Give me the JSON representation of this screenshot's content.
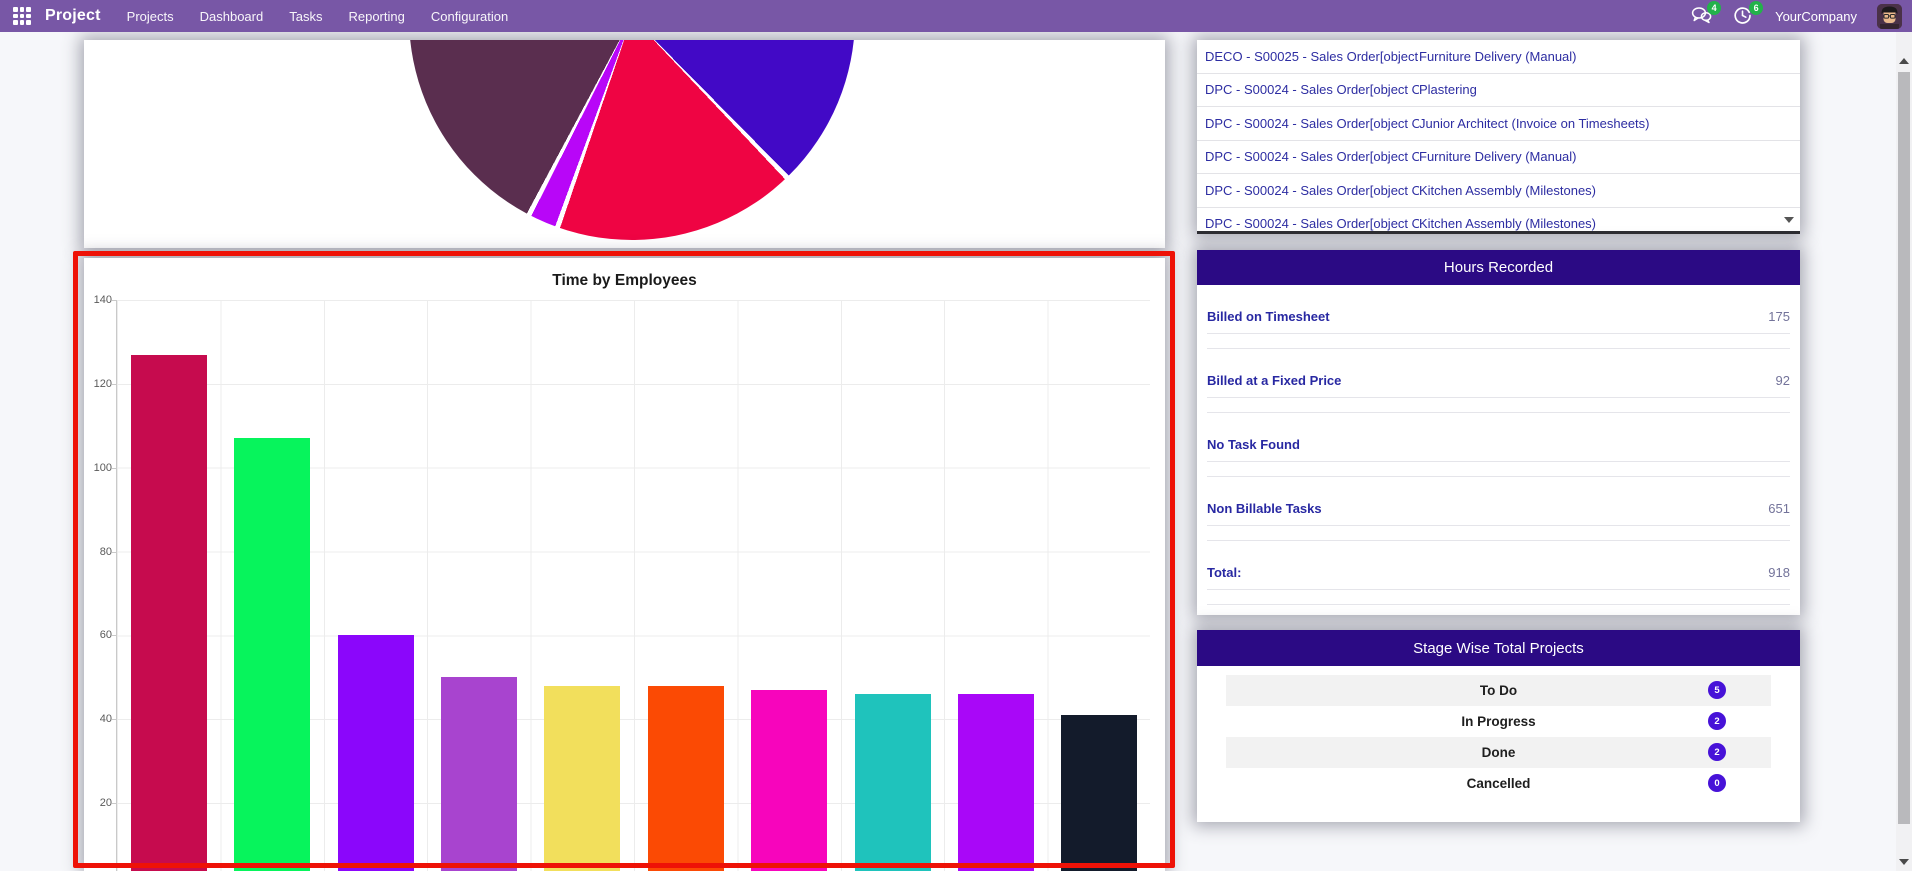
{
  "nav": {
    "app_name": "Project",
    "items": [
      "Projects",
      "Dashboard",
      "Tasks",
      "Reporting",
      "Configuration"
    ],
    "messages_badge": "4",
    "activities_badge": "6",
    "company": "YourCompany"
  },
  "sales_order_table": {
    "rows": [
      {
        "order": "DECO - S00025 - Sales Order[object Object]",
        "task": "Furniture Delivery (Manual)"
      },
      {
        "order": "DPC - S00024 - Sales Order[object Object]",
        "task": "Plastering"
      },
      {
        "order": "DPC - S00024 - Sales Order[object Object]",
        "task": "Junior Architect (Invoice on Timesheets)"
      },
      {
        "order": "DPC - S00024 - Sales Order[object Object]",
        "task": "Furniture Delivery (Manual)"
      },
      {
        "order": "DPC - S00024 - Sales Order[object Object]",
        "task": "Kitchen Assembly (Milestones)"
      },
      {
        "order": "DPC - S00024 - Sales Order[object Object]",
        "task": "Kitchen Assembly (Milestones)"
      }
    ]
  },
  "hours_recorded": {
    "title": "Hours Recorded",
    "rows": [
      {
        "label": "Billed on Timesheet",
        "value": "175"
      },
      {
        "label": "Billed at a Fixed Price",
        "value": "92"
      },
      {
        "label": "No Task Found",
        "value": ""
      },
      {
        "label": "Non Billable Tasks",
        "value": "651"
      },
      {
        "label": "Total:",
        "value": "918"
      }
    ]
  },
  "stage_wise": {
    "title": "Stage Wise Total Projects",
    "rows": [
      {
        "label": "To Do",
        "count": "5"
      },
      {
        "label": "In Progress",
        "count": "2"
      },
      {
        "label": "Done",
        "count": "2"
      },
      {
        "label": "Cancelled",
        "count": "0"
      }
    ]
  },
  "chart_data": [
    {
      "type": "pie",
      "title": "",
      "note": "only bottom segment of pie visible; labels and legend cut off above viewport",
      "slices": [
        {
          "label": "",
          "color": "#4209C6",
          "from_deg": 94,
          "to_deg": 136
        },
        {
          "label": "",
          "color": "#EF0443",
          "from_deg": 136,
          "to_deg": 199.5
        },
        {
          "label": "",
          "color": "#B806F8",
          "from_deg": 199.5,
          "to_deg": 207.5
        },
        {
          "label": "",
          "color": "#5A2E4F",
          "from_deg": 207.5,
          "to_deg": 266
        }
      ]
    },
    {
      "type": "bar",
      "title": "Time by Employees",
      "xlabel": "",
      "ylabel": "",
      "categories": [
        "",
        "",
        "",
        "",
        "",
        "",
        "",
        "",
        "",
        ""
      ],
      "values": [
        127,
        107,
        60,
        50,
        48,
        48,
        47,
        46,
        46,
        41
      ],
      "colors": [
        "#C60B4E",
        "#07F45C",
        "#8B06FB",
        "#A844CF",
        "#F2DF5C",
        "#FB4A04",
        "#F705BC",
        "#1FC3BC",
        "#A907F8",
        "#131B2B"
      ],
      "yticks": [
        140,
        120,
        100,
        80,
        60,
        40,
        20
      ],
      "ylim": [
        0,
        140
      ],
      "grid": true,
      "note": "x-axis category labels cut off below viewport"
    }
  ],
  "colors": {
    "nav_bg": "#7857A6",
    "panel_header_bg": "#2B0A84",
    "stage_badge_bg": "#4712D8",
    "nav_badge_green": "#23B24B",
    "link_text": "#2D2DA2",
    "annotation_red": "#EE1207"
  }
}
